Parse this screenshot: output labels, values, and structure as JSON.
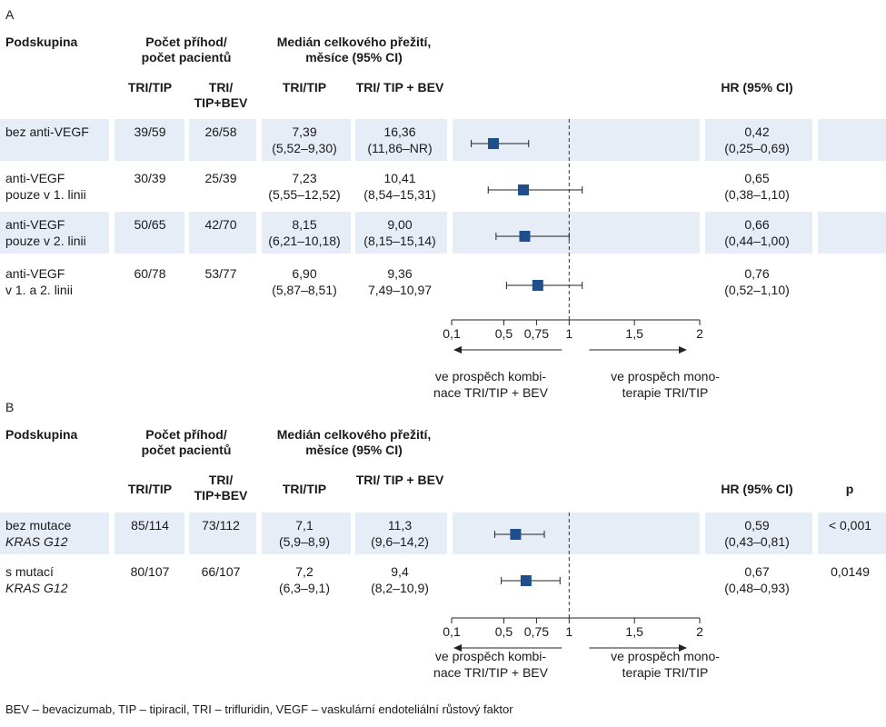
{
  "chart_data": [
    {
      "type": "forest",
      "panel": "A",
      "headers": {
        "subgroup": "Podskupina",
        "events": "Počet příhod/ počet pacientů",
        "median": "Medián celkového přežití, měsíce (95% CI)",
        "tri_tip": "TRI/TIP",
        "tri_tip_bev_events": "TRI/ TIP+BEV",
        "tri_tip_bev_median": "TRI/ TIP + BEV",
        "hr": "HR (95% CI)"
      },
      "rows": [
        {
          "subgroup": [
            "bez anti-VEGF"
          ],
          "events_tritip": "39/59",
          "events_bev": "26/58",
          "median_tritip": [
            "7,39",
            "(5,52–9,30)"
          ],
          "median_bev": [
            "16,36",
            "(11,86–NR)"
          ],
          "hr_text": [
            "0,42",
            "(0,25–0,69)"
          ],
          "hr": 0.42,
          "ci": [
            0.25,
            0.69
          ]
        },
        {
          "subgroup": [
            "anti-VEGF",
            "pouze v 1. linii"
          ],
          "events_tritip": "30/39",
          "events_bev": "25/39",
          "median_tritip": [
            "7,23",
            "(5,55–12,52)"
          ],
          "median_bev": [
            "10,41",
            "(8,54–15,31)"
          ],
          "hr_text": [
            "0,65",
            "(0,38–1,10)"
          ],
          "hr": 0.65,
          "ci": [
            0.38,
            1.1
          ]
        },
        {
          "subgroup": [
            "anti-VEGF",
            "pouze v 2. linii"
          ],
          "events_tritip": "50/65",
          "events_bev": "42/70",
          "median_tritip": [
            "8,15",
            "(6,21–10,18)"
          ],
          "median_bev": [
            "9,00",
            "(8,15–15,14)"
          ],
          "hr_text": [
            "0,66",
            "(0,44–1,00)"
          ],
          "hr": 0.66,
          "ci": [
            0.44,
            1.0
          ]
        },
        {
          "subgroup": [
            "anti-VEGF",
            "v 1. a 2. linii"
          ],
          "events_tritip": "60/78",
          "events_bev": "53/77",
          "median_tritip": [
            "6,90",
            "(5,87–8,51)"
          ],
          "median_bev": [
            "9,36",
            "7,49–10,97"
          ],
          "hr_text": [
            "0,76",
            "(0,52–1,10)"
          ],
          "hr": 0.76,
          "ci": [
            0.52,
            1.1
          ]
        }
      ],
      "x_ticks": [
        {
          "value": 0.1,
          "label": "0,1"
        },
        {
          "value": 0.5,
          "label": "0,5"
        },
        {
          "value": 0.75,
          "label": "0,75"
        },
        {
          "value": 1,
          "label": "1"
        },
        {
          "value": 1.5,
          "label": "1,5"
        },
        {
          "value": 2,
          "label": "2"
        }
      ],
      "reference_line": 1,
      "favors_left": [
        "ve prospěch kombi-",
        "nace TRI/TIP +  BEV"
      ],
      "favors_right": [
        "ve prospěch mono-",
        "terapie TRI/TIP"
      ]
    },
    {
      "type": "forest",
      "panel": "B",
      "headers": {
        "subgroup": "Podskupina",
        "events": "Počet příhod/ počet pacientů",
        "median": "Medián celkového přežití, měsíce (95% CI)",
        "tri_tip": "TRI/TIP",
        "tri_tip_bev_events": "TRI/ TIP+BEV",
        "tri_tip_bev_median": "TRI/ TIP + BEV",
        "hr": "HR (95% CI)",
        "p": "p"
      },
      "rows": [
        {
          "subgroup": [
            "bez mutace",
            "KRAS G12"
          ],
          "events_tritip": "85/114",
          "events_bev": "73/112",
          "median_tritip": [
            "7,1",
            "(5,9–8,9)"
          ],
          "median_bev": [
            "11,3",
            "(9,6–14,2)"
          ],
          "hr_text": [
            "0,59",
            "(0,43–0,81)"
          ],
          "hr": 0.59,
          "ci": [
            0.43,
            0.81
          ],
          "p": "< 0,001"
        },
        {
          "subgroup": [
            "s mutací",
            "KRAS G12"
          ],
          "events_tritip": "80/107",
          "events_bev": "66/107",
          "median_tritip": [
            "7,2",
            "(6,3–9,1)"
          ],
          "median_bev": [
            "9,4",
            "(8,2–10,9)"
          ],
          "hr_text": [
            "0,67",
            "(0,48–0,93)"
          ],
          "hr": 0.67,
          "ci": [
            0.48,
            0.93
          ],
          "p": "0,0149"
        }
      ],
      "x_ticks": [
        {
          "value": 0.1,
          "label": "0,1"
        },
        {
          "value": 0.5,
          "label": "0,5"
        },
        {
          "value": 0.75,
          "label": "0,75"
        },
        {
          "value": 1,
          "label": "1"
        },
        {
          "value": 1.5,
          "label": "1,5"
        },
        {
          "value": 2,
          "label": "2"
        }
      ],
      "reference_line": 1,
      "favors_left": [
        "ve prospěch kombi-",
        "nace TRI/TIP +  BEV"
      ],
      "favors_right": [
        "ve prospěch mono-",
        "terapie TRI/TIP"
      ]
    }
  ],
  "panel_labels": {
    "a": "A",
    "b": "B"
  },
  "colors": {
    "band": "#e6edf7",
    "marker": "#1f4e8c",
    "text": "#1a1a1a"
  },
  "footnote": "BEV – bevacizumab, TIP – tipiracil, TRI – trifluridin, VEGF – vaskulární endoteliální růstový faktor"
}
